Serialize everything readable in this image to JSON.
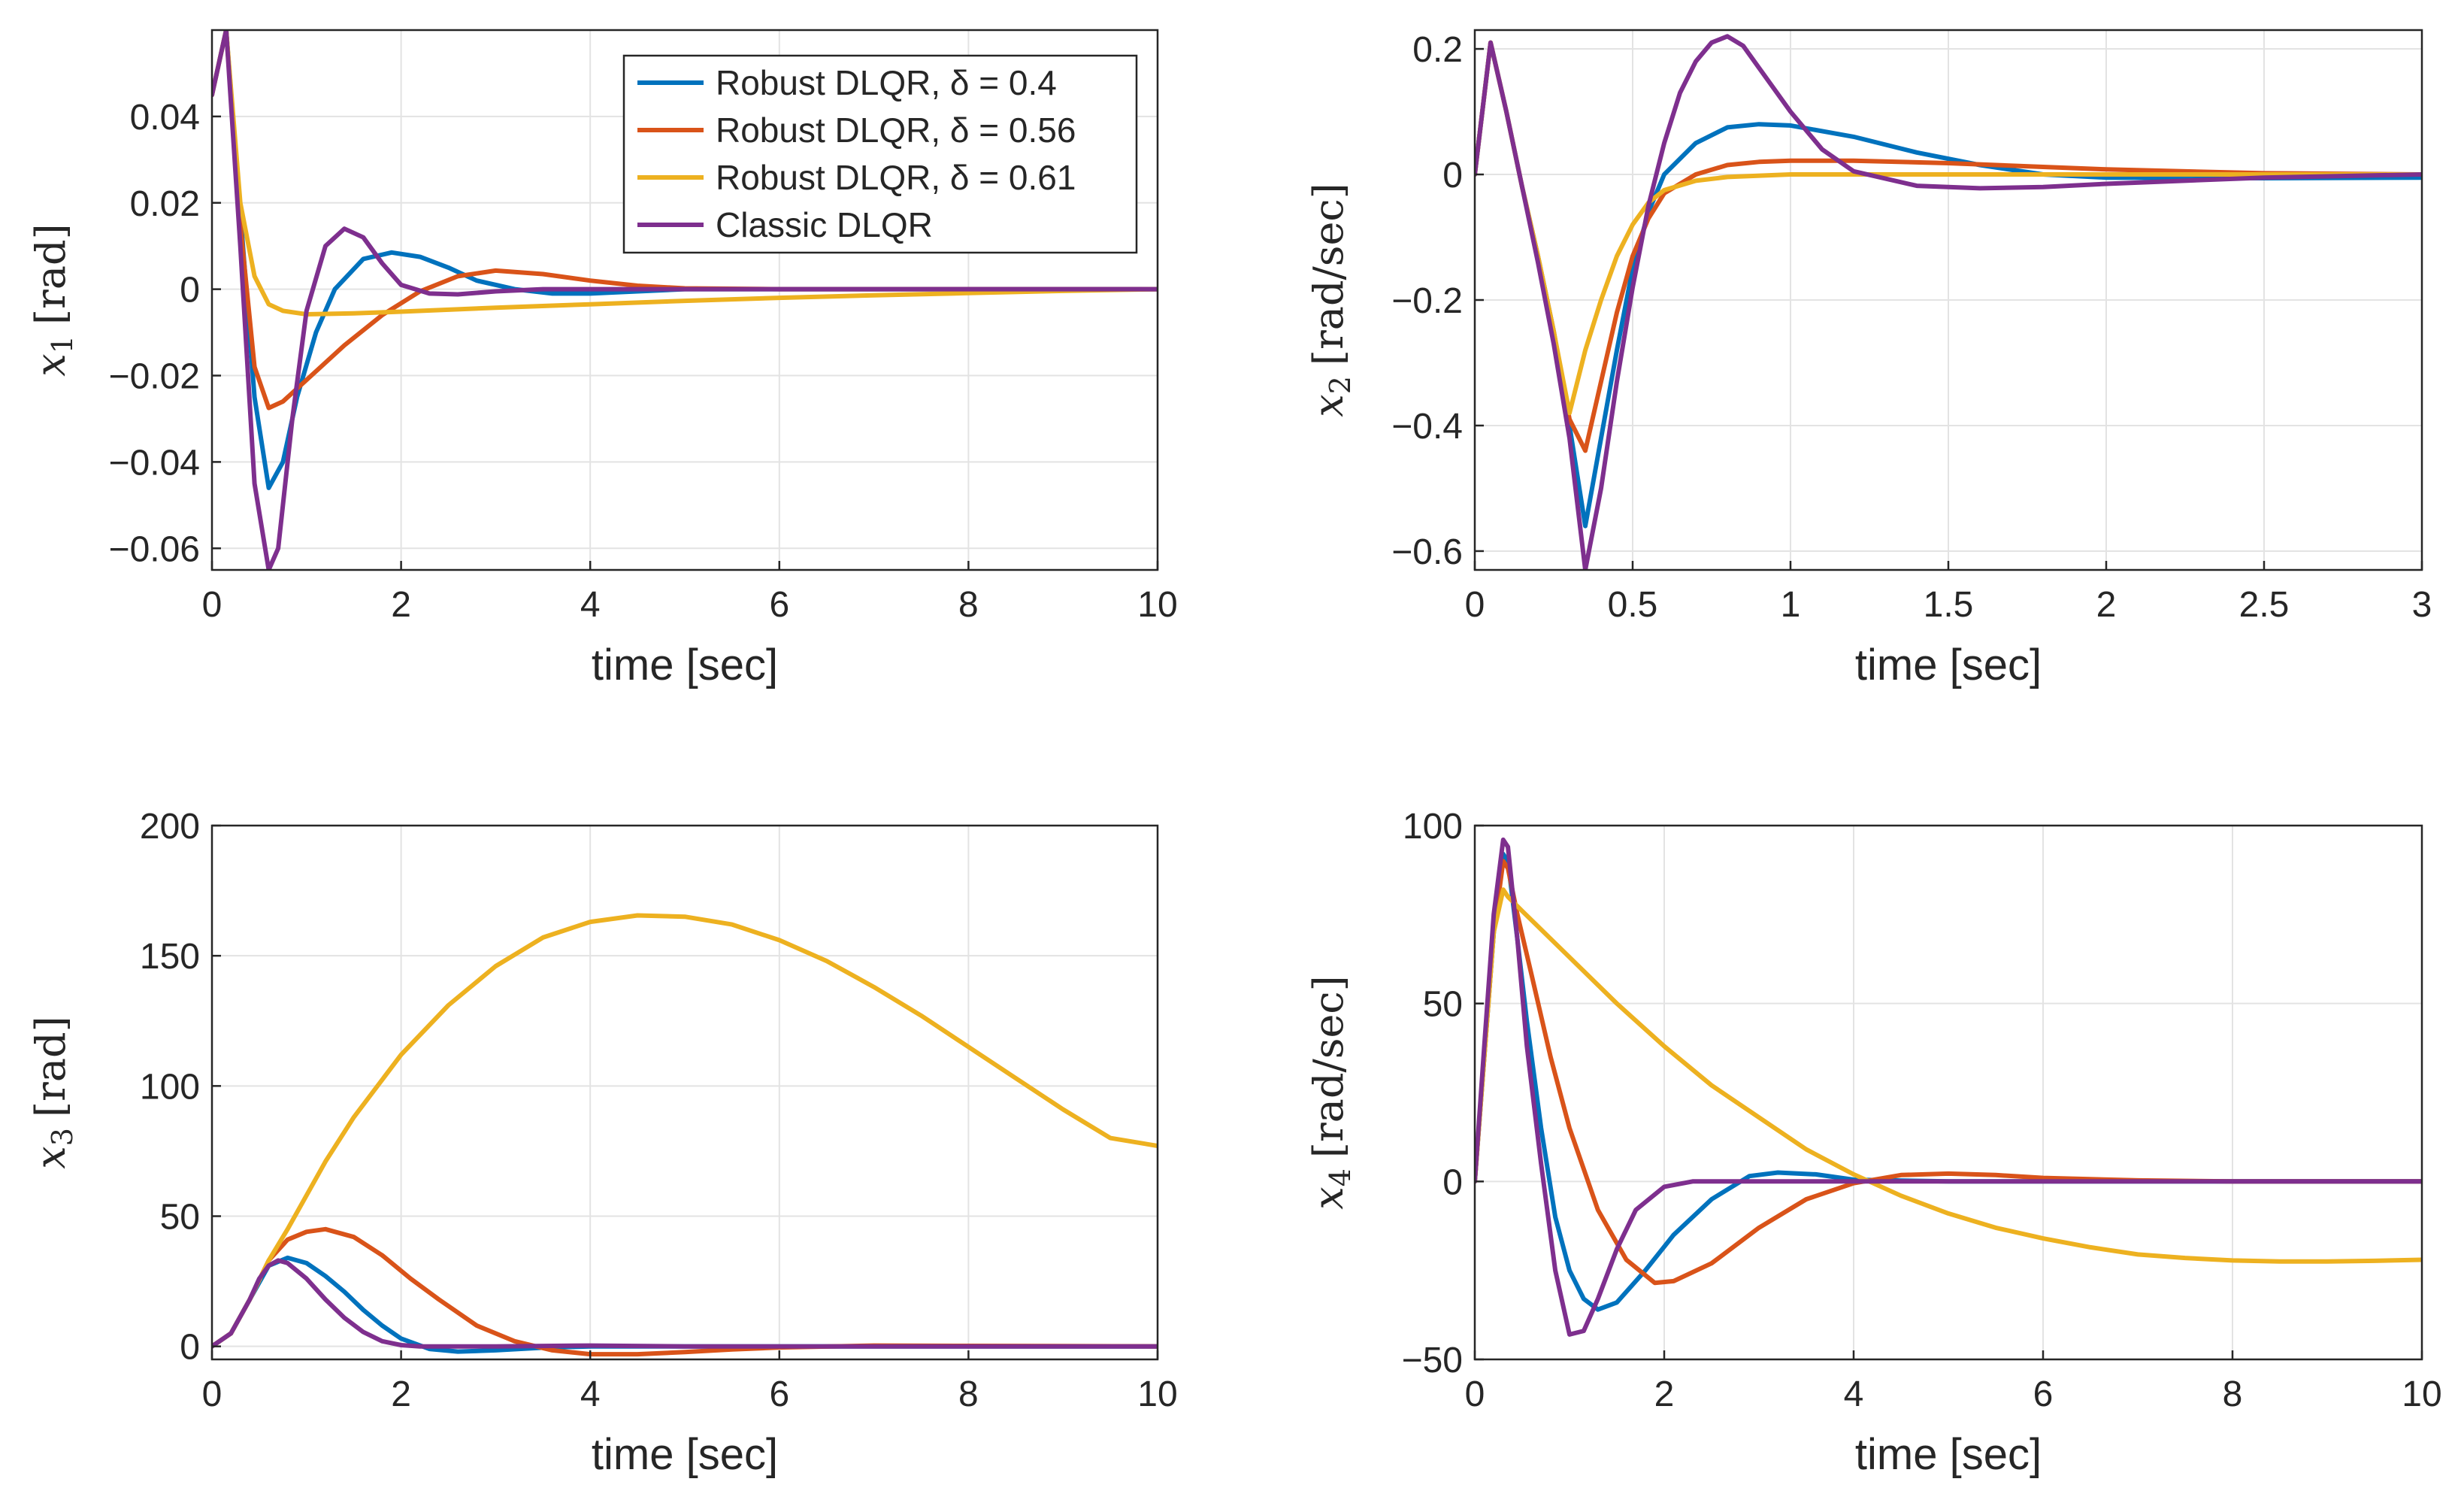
{
  "figure_title": "",
  "legend_entries": [
    "Robust DLQR, δ = 0.4",
    "Robust DLQR, δ = 0.56",
    "Robust DLQR, δ = 0.61",
    "Classic DLQR"
  ],
  "series_colors": [
    "#0072BD",
    "#D95319",
    "#EDB120",
    "#7E2F8E"
  ],
  "chart_data": [
    {
      "type": "line",
      "title": "",
      "xlabel": "time [sec]",
      "ylabel_var": "x",
      "ylabel_sub": "1",
      "ylabel_unit": "[rad]",
      "xlim": [
        0,
        10
      ],
      "ylim": [
        -0.065,
        0.06
      ],
      "xticks": [
        0,
        2,
        4,
        6,
        8,
        10
      ],
      "xtick_labels": [
        "0",
        "2",
        "4",
        "6",
        "8",
        "10"
      ],
      "yticks": [
        -0.06,
        -0.04,
        -0.02,
        0,
        0.02,
        0.04
      ],
      "ytick_labels": [
        "−0.06",
        "−0.04",
        "−0.02",
        "0",
        "0.02",
        "0.04"
      ],
      "grid": true,
      "legend": "top-right",
      "series": [
        {
          "name": "Robust DLQR, δ = 0.4",
          "x": [
            0,
            0.15,
            0.3,
            0.45,
            0.6,
            0.75,
            0.9,
            1.1,
            1.3,
            1.6,
            1.9,
            2.2,
            2.5,
            2.8,
            3.2,
            3.6,
            4.0,
            4.5,
            5,
            6,
            7,
            8,
            10
          ],
          "y": [
            0.045,
            0.06,
            0.018,
            -0.025,
            -0.046,
            -0.04,
            -0.025,
            -0.01,
            0.0,
            0.007,
            0.0085,
            0.0075,
            0.005,
            0.002,
            0.0,
            -0.001,
            -0.001,
            -0.0005,
            0,
            0,
            0,
            0,
            0
          ]
        },
        {
          "name": "Robust DLQR, δ = 0.56",
          "x": [
            0,
            0.15,
            0.3,
            0.45,
            0.6,
            0.75,
            0.9,
            1.1,
            1.4,
            1.8,
            2.2,
            2.6,
            3.0,
            3.5,
            4.0,
            4.5,
            5,
            6,
            7,
            8,
            10
          ],
          "y": [
            0.045,
            0.06,
            0.015,
            -0.018,
            -0.0275,
            -0.026,
            -0.023,
            -0.019,
            -0.013,
            -0.006,
            -0.0005,
            0.003,
            0.0043,
            0.0035,
            0.002,
            0.0008,
            0.0002,
            0,
            0,
            0,
            0
          ]
        },
        {
          "name": "Robust DLQR, δ = 0.61",
          "x": [
            0,
            0.15,
            0.3,
            0.45,
            0.6,
            0.75,
            0.9,
            1.0,
            1.5,
            2,
            3,
            4,
            5,
            6,
            7,
            8,
            9,
            10
          ],
          "y": [
            0.045,
            0.06,
            0.02,
            0.003,
            -0.0035,
            -0.005,
            -0.0055,
            -0.0058,
            -0.0056,
            -0.0052,
            -0.0043,
            -0.0035,
            -0.0027,
            -0.002,
            -0.0014,
            -0.0009,
            -0.0004,
            0.0
          ]
        },
        {
          "name": "Classic DLQR",
          "x": [
            0,
            0.15,
            0.3,
            0.45,
            0.6,
            0.7,
            0.85,
            1.0,
            1.2,
            1.4,
            1.6,
            1.8,
            2.0,
            2.3,
            2.6,
            3.0,
            3.5,
            4,
            5,
            6,
            8,
            10
          ],
          "y": [
            0.045,
            0.06,
            0.01,
            -0.045,
            -0.065,
            -0.06,
            -0.03,
            -0.005,
            0.01,
            0.014,
            0.012,
            0.006,
            0.001,
            -0.001,
            -0.0012,
            -0.0005,
            0,
            0,
            0,
            0,
            0,
            0
          ]
        }
      ]
    },
    {
      "type": "line",
      "title": "",
      "xlabel": "time [sec]",
      "ylabel_var": "x",
      "ylabel_sub": "2",
      "ylabel_unit": "[rad/sec]",
      "xlim": [
        0,
        3
      ],
      "ylim": [
        -0.63,
        0.23
      ],
      "xticks": [
        0,
        0.5,
        1,
        1.5,
        2,
        2.5,
        3
      ],
      "xtick_labels": [
        "0",
        "0.5",
        "1",
        "1.5",
        "2",
        "2.5",
        "3"
      ],
      "yticks": [
        -0.6,
        -0.4,
        -0.2,
        0,
        0.2
      ],
      "ytick_labels": [
        "−0.6",
        "−0.4",
        "−0.2",
        "0",
        "0.2"
      ],
      "grid": true,
      "legend": "none",
      "series": [
        {
          "name": "Robust DLQR, δ = 0.4",
          "x": [
            0,
            0.05,
            0.1,
            0.15,
            0.2,
            0.25,
            0.3,
            0.35,
            0.4,
            0.45,
            0.5,
            0.55,
            0.6,
            0.7,
            0.8,
            0.9,
            1.0,
            1.2,
            1.4,
            1.6,
            1.8,
            2.0,
            2.5,
            3.0
          ],
          "y": [
            0,
            0.21,
            0.1,
            -0.02,
            -0.13,
            -0.25,
            -0.4,
            -0.56,
            -0.42,
            -0.28,
            -0.15,
            -0.06,
            0.0,
            0.05,
            0.075,
            0.08,
            0.078,
            0.06,
            0.035,
            0.015,
            0.0,
            -0.005,
            -0.006,
            -0.005
          ]
        },
        {
          "name": "Robust DLQR, δ = 0.56",
          "x": [
            0,
            0.05,
            0.1,
            0.15,
            0.2,
            0.25,
            0.3,
            0.35,
            0.4,
            0.45,
            0.5,
            0.55,
            0.6,
            0.7,
            0.8,
            0.9,
            1.0,
            1.2,
            1.5,
            1.8,
            2.0,
            2.5,
            3.0
          ],
          "y": [
            0,
            0.21,
            0.1,
            -0.02,
            -0.13,
            -0.25,
            -0.39,
            -0.44,
            -0.33,
            -0.22,
            -0.13,
            -0.07,
            -0.03,
            0.0,
            0.015,
            0.02,
            0.022,
            0.022,
            0.018,
            0.012,
            0.008,
            0.002,
            0.0
          ]
        },
        {
          "name": "Robust DLQR, δ = 0.61",
          "x": [
            0,
            0.05,
            0.1,
            0.15,
            0.2,
            0.25,
            0.3,
            0.35,
            0.4,
            0.45,
            0.5,
            0.55,
            0.6,
            0.7,
            0.8,
            1.0,
            1.5,
            2.0,
            2.5,
            3.0
          ],
          "y": [
            0,
            0.21,
            0.1,
            -0.02,
            -0.13,
            -0.25,
            -0.38,
            -0.28,
            -0.2,
            -0.13,
            -0.08,
            -0.045,
            -0.025,
            -0.01,
            -0.004,
            0.0,
            0.0,
            0.0,
            0.0,
            0.0
          ]
        },
        {
          "name": "Classic DLQR",
          "x": [
            0,
            0.05,
            0.1,
            0.15,
            0.2,
            0.25,
            0.3,
            0.35,
            0.4,
            0.45,
            0.5,
            0.55,
            0.6,
            0.65,
            0.7,
            0.75,
            0.8,
            0.85,
            0.9,
            1.0,
            1.1,
            1.2,
            1.4,
            1.6,
            1.8,
            2.0,
            2.5,
            3.0
          ],
          "y": [
            0,
            0.21,
            0.1,
            -0.02,
            -0.14,
            -0.27,
            -0.42,
            -0.63,
            -0.5,
            -0.33,
            -0.18,
            -0.05,
            0.05,
            0.13,
            0.18,
            0.21,
            0.22,
            0.205,
            0.17,
            0.1,
            0.04,
            0.005,
            -0.018,
            -0.022,
            -0.02,
            -0.015,
            -0.005,
            0.0
          ]
        }
      ]
    },
    {
      "type": "line",
      "title": "",
      "xlabel": "time [sec]",
      "ylabel_var": "x",
      "ylabel_sub": "3",
      "ylabel_unit": "[rad]",
      "xlim": [
        0,
        10
      ],
      "ylim": [
        -5,
        200
      ],
      "xticks": [
        0,
        2,
        4,
        6,
        8,
        10
      ],
      "xtick_labels": [
        "0",
        "2",
        "4",
        "6",
        "8",
        "10"
      ],
      "yticks": [
        0,
        50,
        100,
        150,
        200
      ],
      "ytick_labels": [
        "0",
        "50",
        "100",
        "150",
        "200"
      ],
      "grid": true,
      "legend": "none",
      "series": [
        {
          "name": "Robust DLQR, δ = 0.4",
          "x": [
            0,
            0.2,
            0.4,
            0.6,
            0.8,
            1.0,
            1.2,
            1.4,
            1.6,
            1.8,
            2.0,
            2.3,
            2.6,
            3.0,
            3.5,
            4.0,
            5,
            6,
            8,
            10
          ],
          "y": [
            0,
            5,
            18,
            31,
            34,
            32,
            27,
            21,
            14,
            8,
            3,
            -1,
            -2,
            -1.5,
            -0.5,
            0,
            0,
            0,
            0,
            0
          ]
        },
        {
          "name": "Robust DLQR, δ = 0.56",
          "x": [
            0,
            0.2,
            0.4,
            0.6,
            0.8,
            1.0,
            1.2,
            1.5,
            1.8,
            2.1,
            2.4,
            2.8,
            3.2,
            3.6,
            4.0,
            4.5,
            5,
            5.5,
            6,
            7,
            8,
            10
          ],
          "y": [
            0,
            5,
            18,
            33,
            41,
            44,
            45,
            42,
            35,
            26,
            18,
            8,
            2,
            -1.5,
            -3,
            -3,
            -2.2,
            -1.2,
            -0.4,
            0.3,
            0.2,
            0
          ]
        },
        {
          "name": "Robust DLQR, δ = 0.61",
          "x": [
            0,
            0.2,
            0.4,
            0.6,
            0.8,
            1.0,
            1.2,
            1.5,
            2,
            2.5,
            3,
            3.5,
            4,
            4.5,
            5,
            5.5,
            6,
            6.5,
            7,
            7.5,
            8,
            8.5,
            9,
            9.5,
            10
          ],
          "y": [
            0,
            5,
            18,
            33,
            45,
            58,
            71,
            88,
            112,
            131,
            146,
            157,
            163,
            165.5,
            165,
            162,
            156,
            148,
            138,
            127,
            115,
            103,
            91,
            80,
            77
          ]
        },
        {
          "name": "Classic DLQR",
          "x": [
            0,
            0.2,
            0.4,
            0.5,
            0.6,
            0.7,
            0.8,
            1.0,
            1.2,
            1.4,
            1.6,
            1.8,
            2.0,
            2.2,
            2.5,
            3,
            4,
            5,
            6,
            8,
            10
          ],
          "y": [
            0,
            5,
            18,
            26,
            31,
            33,
            32,
            26,
            18,
            11,
            5.5,
            2,
            0.5,
            0,
            0,
            0,
            0.3,
            0,
            0,
            0,
            0
          ]
        }
      ]
    },
    {
      "type": "line",
      "title": "",
      "xlabel": "time [sec]",
      "ylabel_var": "x",
      "ylabel_sub": "4",
      "ylabel_unit": "[rad/sec]",
      "xlim": [
        0,
        10
      ],
      "ylim": [
        -50,
        100
      ],
      "xticks": [
        0,
        2,
        4,
        6,
        8,
        10
      ],
      "xtick_labels": [
        "0",
        "2",
        "4",
        "6",
        "8",
        "10"
      ],
      "yticks": [
        -50,
        0,
        50,
        100
      ],
      "ytick_labels": [
        "−50",
        "0",
        "50",
        "100"
      ],
      "grid": true,
      "legend": "none",
      "series": [
        {
          "name": "Robust DLQR, δ = 0.4",
          "x": [
            0,
            0.1,
            0.2,
            0.3,
            0.35,
            0.45,
            0.55,
            0.7,
            0.85,
            1.0,
            1.15,
            1.3,
            1.5,
            1.8,
            2.1,
            2.5,
            2.9,
            3.2,
            3.6,
            4.0,
            5,
            6,
            8,
            10
          ],
          "y": [
            0,
            35,
            70,
            92,
            90,
            68,
            45,
            15,
            -10,
            -25,
            -33,
            -36,
            -34,
            -25,
            -15,
            -5,
            1.5,
            2.5,
            2,
            0.5,
            0,
            0,
            0,
            0
          ]
        },
        {
          "name": "Robust DLQR, δ = 0.56",
          "x": [
            0,
            0.1,
            0.2,
            0.3,
            0.35,
            0.45,
            0.6,
            0.8,
            1.0,
            1.3,
            1.6,
            1.9,
            2.1,
            2.5,
            3.0,
            3.5,
            4.0,
            4.5,
            5.0,
            5.5,
            6.0,
            7,
            8,
            10
          ],
          "y": [
            0,
            35,
            70,
            90,
            88,
            75,
            58,
            35,
            15,
            -8,
            -22,
            -28.5,
            -28,
            -23,
            -13,
            -5,
            -0.5,
            1.8,
            2.2,
            1.8,
            1.0,
            0.3,
            0,
            0
          ]
        },
        {
          "name": "Robust DLQR, δ = 0.61",
          "x": [
            0,
            0.1,
            0.2,
            0.3,
            0.35,
            0.5,
            1,
            1.5,
            2,
            2.5,
            3,
            3.5,
            4,
            4.5,
            5,
            5.5,
            6,
            6.5,
            7,
            7.5,
            8,
            8.5,
            9,
            9.5,
            10
          ],
          "y": [
            0,
            35,
            70,
            82,
            80,
            76,
            63,
            50,
            38,
            27,
            18,
            9,
            2,
            -4,
            -9,
            -13,
            -16,
            -18.5,
            -20.5,
            -21.5,
            -22.2,
            -22.5,
            -22.5,
            -22.3,
            -22
          ]
        },
        {
          "name": "Classic DLQR",
          "x": [
            0,
            0.1,
            0.2,
            0.3,
            0.35,
            0.45,
            0.55,
            0.7,
            0.85,
            1.0,
            1.15,
            1.3,
            1.5,
            1.7,
            2.0,
            2.3,
            2.6,
            3.0,
            4,
            5,
            6,
            8,
            10
          ],
          "y": [
            0,
            38,
            75,
            96,
            94,
            68,
            38,
            5,
            -25,
            -43,
            -42,
            -33,
            -19,
            -8,
            -1.5,
            0,
            0,
            0,
            0,
            0,
            0,
            0,
            0
          ]
        }
      ]
    }
  ]
}
